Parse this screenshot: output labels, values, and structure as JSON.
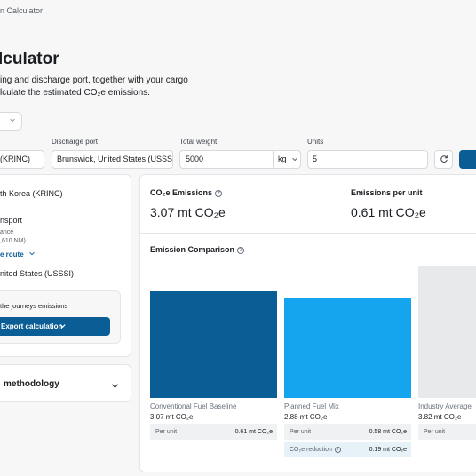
{
  "breadcrumb": "n Calculator",
  "page_title": "lculator",
  "description": {
    "line1": "ing and discharge port, together with your cargo",
    "line2": "lculate the estimated CO₂e emissions."
  },
  "form": {
    "loading_port_value": "(KRINC)",
    "discharge_label": "Discharge port",
    "discharge_value": "Brunswick, United States (USSSI)",
    "weight_label": "Total weight",
    "weight_value": "5000",
    "weight_unit": "kg",
    "units_label": "Units",
    "units_value": "5"
  },
  "route": {
    "origin": "th Korea (KRINC)",
    "transport": "nsport",
    "distance_label": "ance",
    "distance_value": ",610 NM)",
    "route_link": "e route",
    "destination": "nited States (USSSI)",
    "export_text": "the journeys emissions",
    "export_button": "Export calculation",
    "methodology": "methodology"
  },
  "kpis": {
    "emissions_label": "CO₂e Emissions",
    "emissions_value": "3.07 mt CO₂e",
    "per_unit_label": "Emissions per unit",
    "per_unit_value": "0.61 mt CO₂e"
  },
  "comparison": {
    "title": "Emission Comparison",
    "per_unit_label": "Per unit",
    "reduction_label": "CO₂e reduction",
    "bars": [
      {
        "name": "Conventional Fuel Baseline",
        "total": "3.07 mt CO₂e",
        "per_unit": "0.61 mt CO₂e",
        "value": 3.07,
        "color": "#0b5e95"
      },
      {
        "name": "Planned Fuel Mix",
        "total": "2.88 mt CO₂e",
        "per_unit": "0.58 mt CO₂e",
        "reduction": "0.19 mt CO₂e",
        "value": 2.88,
        "color": "#14a5ee"
      },
      {
        "name": "Industry Average",
        "total": "3.82 mt CO₂e",
        "per_unit": "",
        "value": 3.82,
        "color": "#e8e9eb"
      }
    ]
  }
}
